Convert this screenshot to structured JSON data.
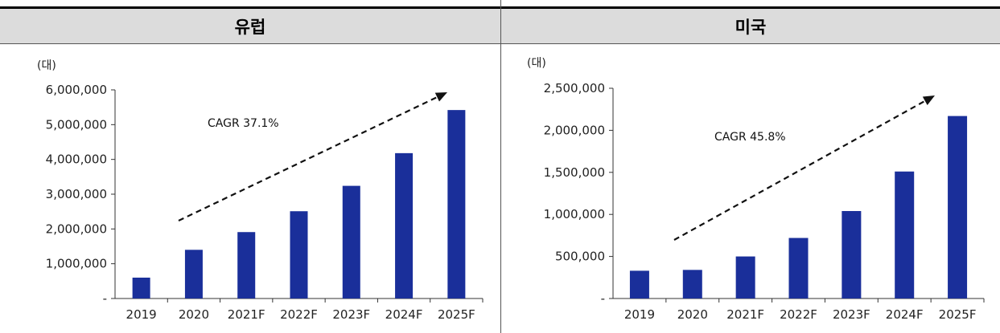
{
  "charts": [
    {
      "id": "left",
      "header": "유럽",
      "unit": "(대)",
      "annotation": "CAGR 37.1%",
      "chart_data": {
        "type": "bar",
        "categories": [
          "2019",
          "2020",
          "2021F",
          "2022F",
          "2023F",
          "2024F",
          "2025F"
        ],
        "values": [
          600000,
          1400000,
          1910000,
          2510000,
          3240000,
          4180000,
          5420000
        ],
        "title": "유럽",
        "ylabel": "(대)",
        "ylim": [
          0,
          6000000
        ],
        "yticks": [
          0,
          1000000,
          2000000,
          3000000,
          4000000,
          5000000,
          6000000
        ],
        "ytick_labels": [
          "-",
          "1,000,000",
          "2,000,000",
          "3,000,000",
          "4,000,000",
          "5,000,000",
          "6,000,000"
        ],
        "bar_color": "#1a2f9a",
        "grid": false,
        "legend": "none"
      }
    },
    {
      "id": "right",
      "header": "미국",
      "unit": "(대)",
      "annotation": "CAGR 45.8%",
      "chart_data": {
        "type": "bar",
        "categories": [
          "2019",
          "2020",
          "2021F",
          "2022F",
          "2023F",
          "2024F",
          "2025F"
        ],
        "values": [
          330000,
          340000,
          500000,
          720000,
          1040000,
          1510000,
          2170000
        ],
        "title": "미국",
        "ylabel": "(대)",
        "ylim": [
          0,
          2500000
        ],
        "yticks": [
          0,
          500000,
          1000000,
          1500000,
          2000000,
          2500000
        ],
        "ytick_labels": [
          "-",
          "500,000",
          "1,000,000",
          "1,500,000",
          "2,000,000",
          "2,500,000"
        ],
        "bar_color": "#1a2f9a",
        "grid": false,
        "legend": "none"
      }
    }
  ]
}
